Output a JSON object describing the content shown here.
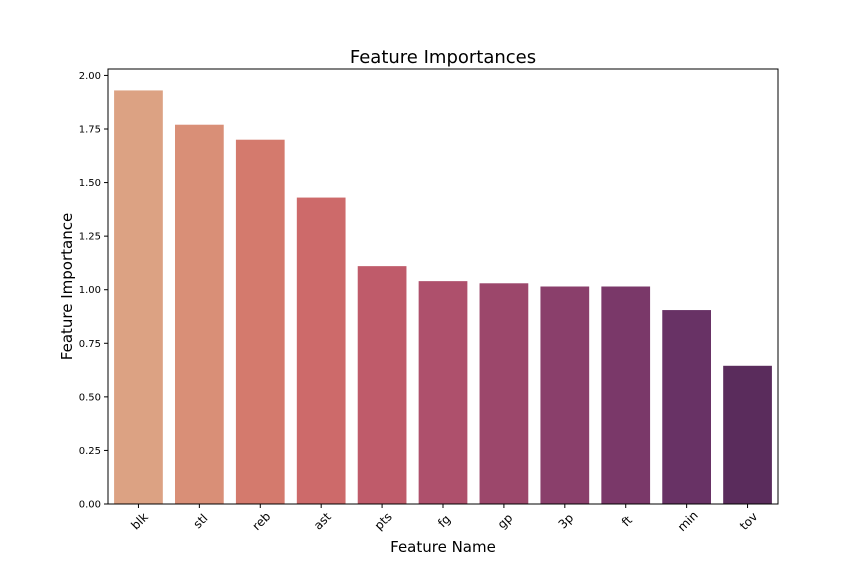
{
  "chart_data": {
    "type": "bar",
    "title": "Feature Importances",
    "xlabel": "Feature Name",
    "ylabel": "Feature Importance",
    "categories": [
      "blk",
      "stl",
      "reb",
      "ast",
      "pts",
      "fg",
      "gp",
      "3p",
      "ft",
      "min",
      "tov"
    ],
    "values": [
      1.93,
      1.77,
      1.7,
      1.43,
      1.11,
      1.04,
      1.03,
      1.015,
      1.015,
      0.905,
      0.645
    ],
    "colors": [
      "#dca283",
      "#d98f77",
      "#d47a6d",
      "#cd6a6a",
      "#bf5b6a",
      "#ae506c",
      "#9c476b",
      "#8a3f6b",
      "#7a3869",
      "#683265",
      "#5a2c5c"
    ],
    "yticks": [
      "0.00",
      "0.25",
      "0.50",
      "0.75",
      "1.00",
      "1.25",
      "1.50",
      "1.75",
      "2.00"
    ],
    "ylim": [
      0,
      2.03
    ],
    "grid": false,
    "legend": "none"
  }
}
